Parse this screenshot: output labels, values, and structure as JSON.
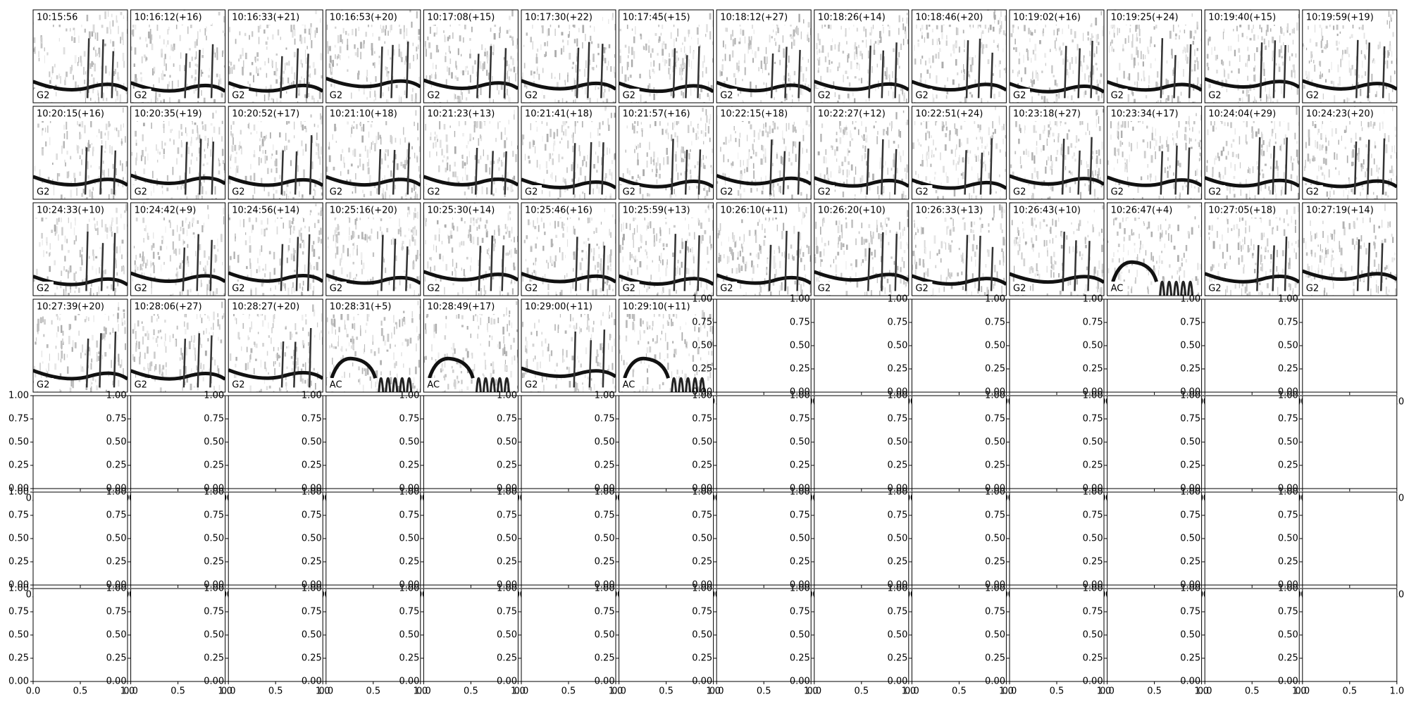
{
  "panels": [
    {
      "title": "10:15:56",
      "label": "G2"
    },
    {
      "title": "10:16:12(+16)",
      "label": "G2"
    },
    {
      "title": "10:16:33(+21)",
      "label": "G2"
    },
    {
      "title": "10:16:53(+20)",
      "label": "G2"
    },
    {
      "title": "10:17:08(+15)",
      "label": "G2"
    },
    {
      "title": "10:17:30(+22)",
      "label": "G2"
    },
    {
      "title": "10:17:45(+15)",
      "label": "G2"
    },
    {
      "title": "10:18:12(+27)",
      "label": "G2"
    },
    {
      "title": "10:18:26(+14)",
      "label": "G2"
    },
    {
      "title": "10:18:46(+20)",
      "label": "G2"
    },
    {
      "title": "10:19:02(+16)",
      "label": "G2"
    },
    {
      "title": "10:19:25(+24)",
      "label": "G2"
    },
    {
      "title": "10:19:40(+15)",
      "label": "G2"
    },
    {
      "title": "10:19:59(+19)",
      "label": "G2"
    },
    {
      "title": "10:20:15(+16)",
      "label": "G2"
    },
    {
      "title": "10:20:35(+19)",
      "label": "G2"
    },
    {
      "title": "10:20:52(+17)",
      "label": "G2"
    },
    {
      "title": "10:21:10(+18)",
      "label": "G2"
    },
    {
      "title": "10:21:23(+13)",
      "label": "G2"
    },
    {
      "title": "10:21:41(+18)",
      "label": "G2"
    },
    {
      "title": "10:21:57(+16)",
      "label": "G2"
    },
    {
      "title": "10:22:15(+18)",
      "label": "G2"
    },
    {
      "title": "10:22:27(+12)",
      "label": "G2"
    },
    {
      "title": "10:22:51(+24)",
      "label": "G2"
    },
    {
      "title": "10:23:18(+27)",
      "label": "G2"
    },
    {
      "title": "10:23:34(+17)",
      "label": "G2"
    },
    {
      "title": "10:24:04(+29)",
      "label": "G2"
    },
    {
      "title": "10:24:23(+20)",
      "label": "G2"
    },
    {
      "title": "10:24:33(+10)",
      "label": "G2"
    },
    {
      "title": "10:24:42(+9)",
      "label": "G2"
    },
    {
      "title": "10:24:56(+14)",
      "label": "G2"
    },
    {
      "title": "10:25:16(+20)",
      "label": "G2"
    },
    {
      "title": "10:25:30(+14)",
      "label": "G2"
    },
    {
      "title": "10:25:46(+16)",
      "label": "G2"
    },
    {
      "title": "10:25:59(+13)",
      "label": "G2"
    },
    {
      "title": "10:26:10(+11)",
      "label": "G2"
    },
    {
      "title": "10:26:20(+10)",
      "label": "G2"
    },
    {
      "title": "10:26:33(+13)",
      "label": "G2"
    },
    {
      "title": "10:26:43(+10)",
      "label": "G2"
    },
    {
      "title": "10:26:47(+4)",
      "label": "AC"
    },
    {
      "title": "10:27:05(+18)",
      "label": "G2"
    },
    {
      "title": "10:27:19(+14)",
      "label": "G2"
    },
    {
      "title": "10:27:39(+20)",
      "label": "G2"
    },
    {
      "title": "10:28:06(+27)",
      "label": "G2"
    },
    {
      "title": "10:28:27(+20)",
      "label": "G2"
    },
    {
      "title": "10:28:31(+5)",
      "label": "AC"
    },
    {
      "title": "10:28:49(+17)",
      "label": "AC"
    },
    {
      "title": "10:29:00(+11)",
      "label": "G2"
    },
    {
      "title": "10:29:10(+11)",
      "label": "AC"
    }
  ],
  "empty_axes": {
    "yticks": [
      "0.00",
      "0.25",
      "0.50",
      "0.75",
      "1.00"
    ],
    "xticks": [
      "0.0",
      "0.5",
      "1.0"
    ]
  }
}
